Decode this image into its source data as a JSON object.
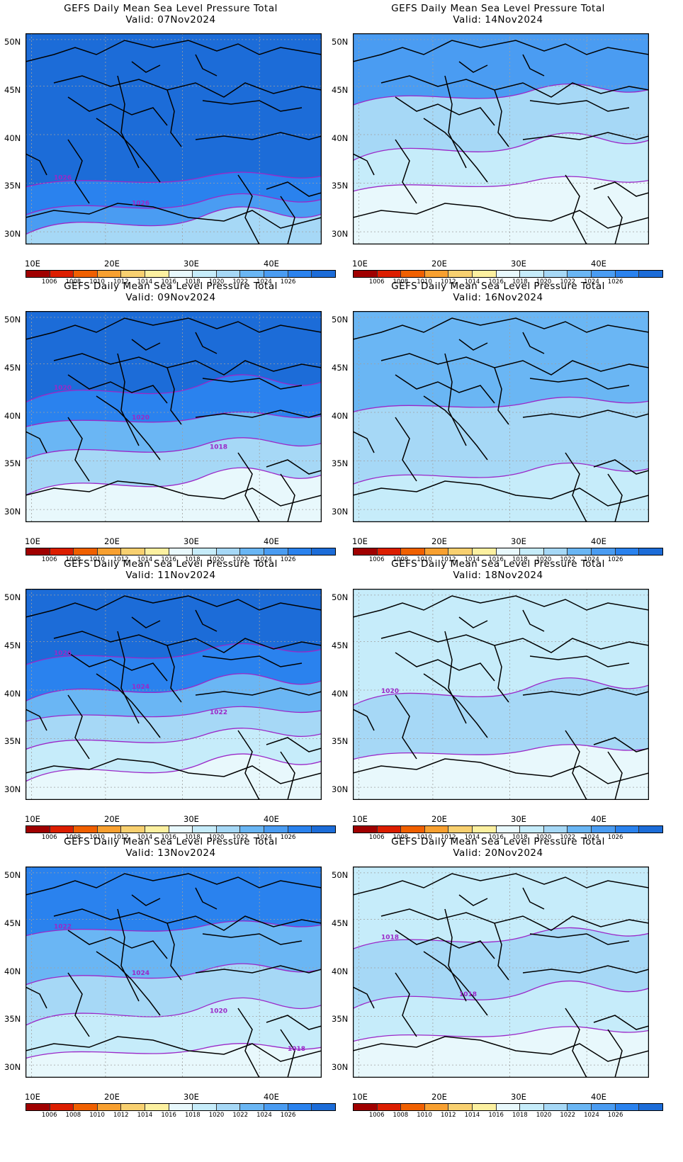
{
  "panels": [
    {
      "title": "GEFS Daily Mean Sea Level Pressure Total",
      "valid": "Valid: 07Nov2024",
      "base": "#1c6cd8",
      "bands": [
        [
          "#2a82ee",
          0.7
        ],
        [
          "#4a9cf2",
          0.82
        ],
        [
          "#a6d8f6",
          0.9
        ]
      ],
      "contour_labels": [
        "1026",
        "1026"
      ]
    },
    {
      "title": "GEFS Daily Mean Sea Level Pressure Total",
      "valid": "Valid: 14Nov2024",
      "base": "#4a9cf2",
      "bands": [
        [
          "#a6d8f6",
          0.3
        ],
        [
          "#c6ecfa",
          0.55
        ],
        [
          "#e8f8fc",
          0.72
        ]
      ],
      "contour_labels": []
    },
    {
      "title": "GEFS Daily Mean Sea Level Pressure Total",
      "valid": "Valid: 09Nov2024",
      "base": "#1c6cd8",
      "bands": [
        [
          "#2a82ee",
          0.38
        ],
        [
          "#6ab6f4",
          0.52
        ],
        [
          "#a6d8f6",
          0.66
        ],
        [
          "#e8f8fc",
          0.82
        ]
      ],
      "contour_labels": [
        "1020",
        "1020",
        "1018"
      ]
    },
    {
      "title": "GEFS Daily Mean Sea Level Pressure Total",
      "valid": "Valid: 16Nov2024",
      "base": "#6ab6f4",
      "bands": [
        [
          "#a6d8f6",
          0.45
        ],
        [
          "#c6ecfa",
          0.78
        ]
      ],
      "contour_labels": []
    },
    {
      "title": "GEFS Daily Mean Sea Level Pressure Total",
      "valid": "Valid: 11Nov2024",
      "base": "#1c6cd8",
      "bands": [
        [
          "#2a82ee",
          0.32
        ],
        [
          "#6ab6f4",
          0.48
        ],
        [
          "#a6d8f6",
          0.6
        ],
        [
          "#c6ecfa",
          0.72
        ],
        [
          "#e8f8fc",
          0.86
        ]
      ],
      "contour_labels": [
        "1026",
        "1024",
        "1022"
      ]
    },
    {
      "title": "GEFS Daily Mean Sea Level Pressure Total",
      "valid": "Valid: 18Nov2024",
      "base": "#c6ecfa",
      "bands": [
        [
          "#a6d8f6",
          0.5
        ],
        [
          "#e8f8fc",
          0.78
        ]
      ],
      "contour_labels": [
        "1020"
      ]
    },
    {
      "title": "GEFS Daily Mean Sea Level Pressure Total",
      "valid": "Valid: 13Nov2024",
      "base": "#2a82ee",
      "bands": [
        [
          "#6ab6f4",
          0.3
        ],
        [
          "#a6d8f6",
          0.52
        ],
        [
          "#c6ecfa",
          0.7
        ],
        [
          "#e8f8fc",
          0.88
        ]
      ],
      "contour_labels": [
        "1022",
        "1024",
        "1020",
        "1018"
      ]
    },
    {
      "title": "GEFS Daily Mean Sea Level Pressure Total",
      "valid": "Valid: 20Nov2024",
      "base": "#c6ecfa",
      "bands": [
        [
          "#a6d8f6",
          0.35
        ],
        [
          "#c6ecfa",
          0.62
        ],
        [
          "#e8f8fc",
          0.8
        ]
      ],
      "contour_labels": [
        "1018",
        "1018"
      ]
    }
  ],
  "axes": {
    "lat_labels": [
      "50N",
      "45N",
      "40N",
      "35N",
      "30N"
    ],
    "lon_labels": [
      "10E",
      "20E",
      "30E",
      "40E"
    ]
  },
  "colorbar": {
    "colors": [
      "#a00000",
      "#dc1e00",
      "#f06000",
      "#f8a030",
      "#f8d070",
      "#fcf0a0",
      "#e8f8fc",
      "#c6ecfa",
      "#a6d8f6",
      "#6ab6f4",
      "#4a9cf2",
      "#2a82ee",
      "#1c6cd8"
    ],
    "labels": [
      "1006",
      "1008",
      "1010",
      "1012",
      "1014",
      "1016",
      "1018",
      "1020",
      "1022",
      "1024",
      "1026"
    ]
  },
  "colors": {
    "contour": "#9b28c8",
    "border": "#000000",
    "grid": "#a0a0a0"
  }
}
